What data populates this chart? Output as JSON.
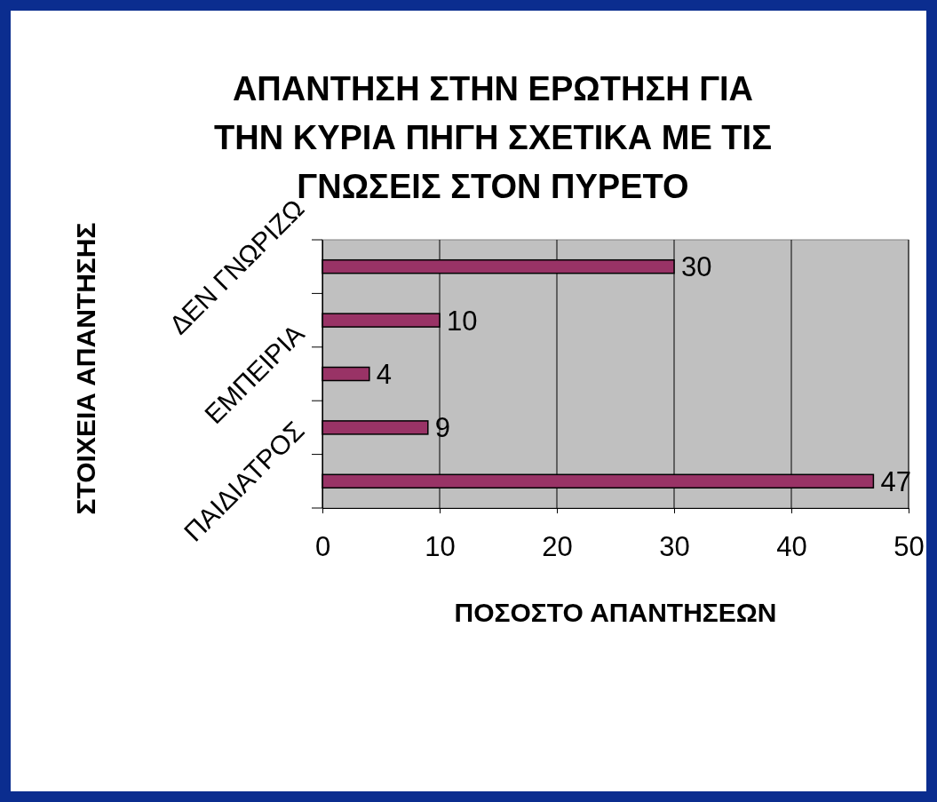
{
  "chart_data": {
    "type": "bar",
    "orientation": "horizontal",
    "title": "ΑΠΑΝΤΗΣΗ ΣΤΗΝ ΕΡΩΤΗΣΗ ΓΙΑ ΤΗΝ ΚΥΡΙΑ ΠΗΓΗ ΣΧΕΤΙΚΑ ΜΕ ΤΙΣ ΓΝΩΣΕΙΣ ΣΤΟΝ ΠΥΡΕΤΟ",
    "xlabel": "ΠΟΣΟΣΤΟ ΑΠΑΝΤΗΣΕΩΝ",
    "ylabel": "ΣΤΟΙΧΕΙΑ ΑΠΑΝΤΗΣΗΣ",
    "categories": [
      "ΔΕΝ ΓΝΩΡΙΖΩ",
      null,
      "ΕΜΠΕΙΡΙΑ",
      null,
      "ΠΑΙΔΙΑΤΡΟΣ"
    ],
    "values": [
      30,
      10,
      4,
      9,
      47
    ],
    "color": "#993366",
    "xlim": [
      0,
      50
    ],
    "xticks": [
      0,
      10,
      20,
      30,
      40,
      50
    ],
    "grid": "x",
    "data_labels": true
  }
}
